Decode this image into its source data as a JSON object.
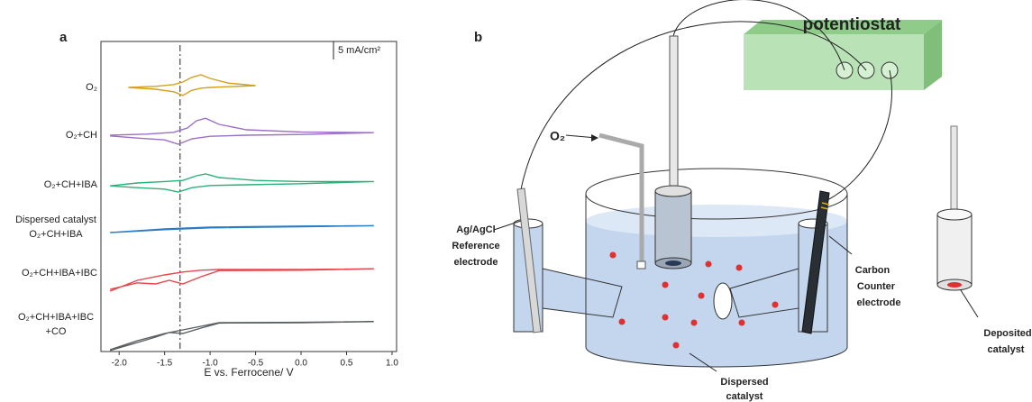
{
  "chart_data": {
    "type": "line",
    "panel_label": "a",
    "xlabel": "E vs. Ferrocene/ V",
    "xlim": [
      -2.2,
      1.05
    ],
    "xticks": [
      {
        "value": -2,
        "label": "-2.0"
      },
      -1.5,
      {
        "value": -1,
        "label": "-1.0"
      },
      -0.5,
      {
        "value": 0,
        "label": "0.0"
      },
      0.5,
      {
        "value": 1,
        "label": "1.0"
      }
    ],
    "reference_line_x": -1.33,
    "scale_bar": {
      "value": 5,
      "label": "5 mA/cm²"
    },
    "series": [
      {
        "label": [
          "O₂"
        ],
        "color": "#d4a020",
        "x": [
          -1.9,
          -1.6,
          -1.4,
          -1.3,
          -1.2,
          -1.1,
          -1.0,
          -0.8,
          -0.5,
          -0.8,
          -1.0,
          -1.1,
          -1.2,
          -1.3,
          -1.4,
          -1.6,
          -1.9
        ],
        "values": [
          0,
          0.3,
          0.8,
          1.5,
          2.8,
          3.5,
          2.5,
          1.2,
          0.5,
          0.2,
          0,
          -0.2,
          -0.8,
          -2.2,
          -1.2,
          -0.5,
          0
        ]
      },
      {
        "label": [
          "O₂+CH"
        ],
        "color": "#9b6fc7",
        "x": [
          -2.1,
          -1.7,
          -1.4,
          -1.25,
          -1.15,
          -1.05,
          -0.9,
          -0.6,
          0,
          0.8,
          0,
          -0.6,
          -1.0,
          -1.2,
          -1.35,
          -1.5,
          -1.8,
          -2.1
        ],
        "values": [
          0,
          0.3,
          0.8,
          2,
          4,
          4.7,
          3,
          1.5,
          0.9,
          0.7,
          0.2,
          0,
          -0.3,
          -1,
          -2.5,
          -1.3,
          -0.8,
          -0.2
        ]
      },
      {
        "label": [
          "O₂+CH+IBA"
        ],
        "color": "#2bb07a",
        "x": [
          -2.1,
          -1.8,
          -1.5,
          -1.3,
          -1.15,
          -1.05,
          -0.9,
          -0.5,
          0,
          0.8,
          0,
          -0.6,
          -1.0,
          -1.2,
          -1.35,
          -1.5,
          -1.8,
          -2.1
        ],
        "values": [
          -0.3,
          0.5,
          0.9,
          1.2,
          2.5,
          3,
          2,
          1.2,
          0.9,
          0.9,
          0.3,
          0,
          -0.2,
          -0.8,
          -2,
          -1.2,
          -0.8,
          -0.3
        ]
      },
      {
        "label": [
          "Dispersed catalyst",
          "O₂+CH+IBA"
        ],
        "color": "#2a7cc7",
        "x": [
          -2.1,
          -1.5,
          -1.0,
          0,
          0.8,
          0,
          -1.0,
          -1.5,
          -2.1
        ],
        "values": [
          -1.5,
          -0.5,
          0,
          0.3,
          0.4,
          0.1,
          -0.2,
          -0.7,
          -1.5
        ]
      },
      {
        "label": [
          "O₂+CH+IBA+IBC"
        ],
        "color": "#e8454a",
        "x": [
          -2.1,
          -1.8,
          -1.5,
          -1.3,
          -1.1,
          -0.9,
          0,
          0.8,
          0,
          -0.9,
          -1.1,
          -1.3,
          -1.45,
          -1.6,
          -1.8,
          -2.1
        ],
        "values": [
          -5,
          -2,
          -0.5,
          0.3,
          0.8,
          1,
          1,
          1.2,
          0.8,
          0.7,
          -1,
          -3,
          -2,
          -3,
          -2.7,
          -4.5
        ]
      },
      {
        "label": [
          "O₂+CH+IBA+IBC",
          "+CO"
        ],
        "color": "#5a5e60",
        "x": [
          -2.1,
          -1.8,
          -1.5,
          -1.3,
          -1.1,
          -0.9,
          0,
          0.8,
          0,
          -0.9,
          -1.1,
          -1.3,
          -1.45,
          -1.6,
          -1.8,
          -2.1
        ],
        "values": [
          -7,
          -4.5,
          -2.5,
          -1.5,
          -0.5,
          0.5,
          0.6,
          0.8,
          0.5,
          0.4,
          -1,
          -2.5,
          -2.2,
          -3.5,
          -5,
          -7.2
        ]
      }
    ]
  },
  "diagram": {
    "panel_label": "b",
    "potentiostat": "potentiostat",
    "gas": "O₂",
    "reference_electrode": [
      "Ag/AgCl",
      "Reference",
      "electrode"
    ],
    "counter_electrode": [
      "Carbon",
      "Counter",
      "electrode"
    ],
    "deposited_catalyst": [
      "Deposited",
      "catalyst"
    ],
    "dispersed_catalyst": [
      "Dispersed",
      "catalyst"
    ]
  }
}
